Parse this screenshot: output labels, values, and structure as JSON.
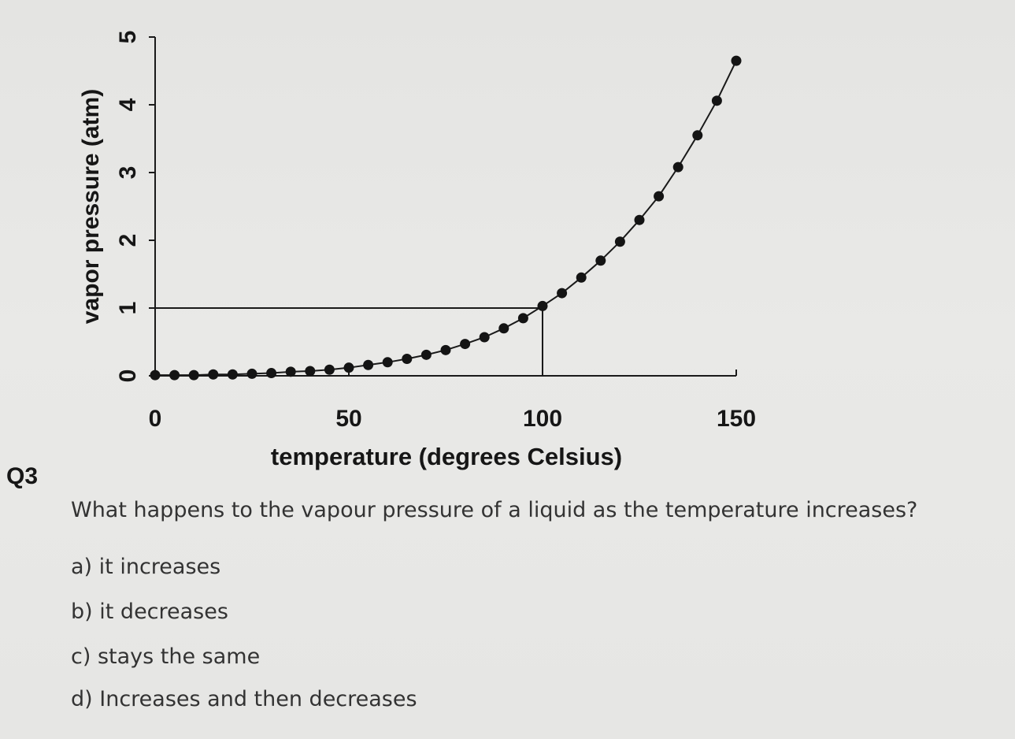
{
  "chart_data": {
    "type": "scatter",
    "title": "",
    "xlabel": "temperature (degrees Celsius)",
    "ylabel": "vapor pressure (atm)",
    "xlim": [
      0,
      150
    ],
    "ylim": [
      0,
      5
    ],
    "x_ticks": [
      "0",
      "50",
      "100",
      "150"
    ],
    "y_ticks": [
      "0",
      "1",
      "2",
      "3",
      "4",
      "5"
    ],
    "grid": false,
    "legend": "none",
    "connected_line": true,
    "reference_lines": {
      "y": 1,
      "x": 100
    },
    "series": [
      {
        "x": [
          0,
          5,
          10,
          15,
          20,
          25,
          30,
          35,
          40,
          45,
          50,
          55,
          60,
          65,
          70,
          75,
          80,
          85,
          90,
          95,
          100,
          105,
          110,
          115,
          120,
          125,
          130,
          135,
          140,
          145,
          150
        ],
        "y": [
          0.01,
          0.01,
          0.01,
          0.02,
          0.02,
          0.03,
          0.04,
          0.06,
          0.07,
          0.09,
          0.12,
          0.16,
          0.2,
          0.25,
          0.31,
          0.38,
          0.47,
          0.57,
          0.7,
          0.85,
          1.03,
          1.22,
          1.45,
          1.7,
          1.98,
          2.3,
          2.65,
          3.08,
          3.55,
          4.06,
          4.65
        ]
      }
    ],
    "colors": {
      "marker": "#141414",
      "axis": "#1a1a1a"
    }
  },
  "question": {
    "number": "Q3",
    "text": "What happens to the vapour pressure of a liquid as the temperature increases?",
    "options": [
      "a) it increases",
      "b) it decreases",
      "c) stays the same",
      "d) Increases and then decreases"
    ]
  }
}
